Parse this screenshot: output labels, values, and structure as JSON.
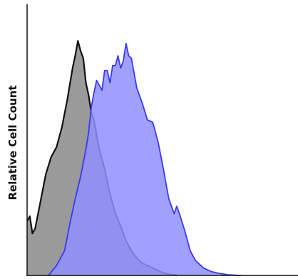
{
  "chart_data": {
    "type": "area",
    "title": "",
    "xlabel": "",
    "ylabel": "Relative Cell Count",
    "xlim": [
      0,
      100
    ],
    "ylim": [
      0,
      100
    ],
    "grid": false,
    "legend": "none",
    "series": [
      {
        "fill": "#9a9a9a",
        "stroke": "#111111",
        "x": [
          0,
          1,
          2,
          3,
          5,
          7,
          9,
          11,
          13,
          15,
          17,
          18,
          19,
          20,
          21,
          22,
          23,
          24,
          25,
          26,
          27,
          28,
          29,
          30,
          31,
          33,
          35,
          37,
          39,
          41,
          43,
          45,
          47,
          49,
          51,
          53,
          55,
          56
        ],
        "y": [
          22,
          24,
          17,
          19,
          30,
          41,
          48,
          52,
          60,
          71,
          84,
          89,
          95,
          91,
          88,
          78,
          73,
          66,
          63,
          57,
          51,
          47,
          43,
          38,
          33,
          25,
          20,
          14,
          10,
          7,
          5,
          4,
          3,
          2,
          1,
          0.5,
          0.2,
          0
        ]
      },
      {
        "fill": "#8f8ffd",
        "stroke": "#3a3aee",
        "x": [
          8,
          11,
          14,
          16,
          18,
          20,
          22,
          23,
          24,
          25,
          26,
          27,
          28,
          29,
          30,
          31,
          32,
          33,
          34,
          35,
          36,
          37,
          38,
          39,
          41,
          43,
          45,
          47,
          49,
          51,
          52,
          53,
          54,
          55,
          56,
          57,
          59,
          61,
          63,
          66,
          69,
          72,
          75,
          78,
          80
        ],
        "y": [
          0,
          4,
          10,
          21,
          31,
          40,
          51,
          58,
          68,
          74,
          79,
          77,
          75,
          83,
          83,
          78,
          85,
          85,
          89,
          84,
          87,
          94,
          89,
          88,
          76,
          70,
          63,
          62,
          54,
          43,
          37,
          31,
          28,
          25,
          28,
          25,
          18,
          10,
          6,
          3,
          1.5,
          0.8,
          0.3,
          0.1,
          0
        ]
      }
    ]
  }
}
